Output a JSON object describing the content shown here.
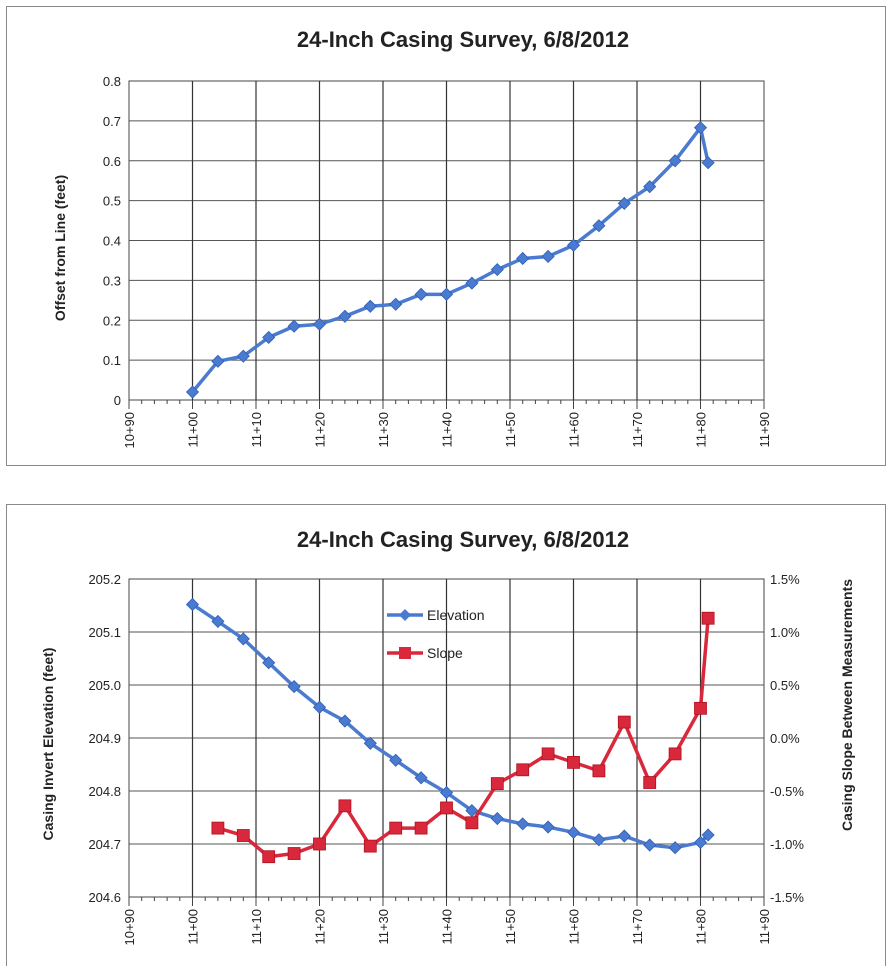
{
  "chart_data": [
    {
      "type": "line",
      "title": "24-Inch Casing Survey, 6/8/2012",
      "xlabel": "",
      "ylabel": "Offset from Line (feet)",
      "x_ticks": [
        "10+90",
        "11+00",
        "11+10",
        "11+20",
        "11+30",
        "11+40",
        "11+50",
        "11+60",
        "11+70",
        "11+80",
        "11+90"
      ],
      "xlim": [
        1090,
        1190
      ],
      "ylim": [
        0,
        0.8
      ],
      "y_ticks": [
        0,
        0.1,
        0.2,
        0.3,
        0.4,
        0.5,
        0.6,
        0.7,
        0.8
      ],
      "grid": true,
      "series": [
        {
          "name": "",
          "color": "#4a7bd0",
          "marker": "diamond",
          "x": [
            1100,
            1104,
            1108,
            1112,
            1116,
            1120,
            1124,
            1128,
            1132,
            1136,
            1140,
            1144,
            1148,
            1152,
            1156,
            1160,
            1164,
            1168,
            1172,
            1176,
            1180,
            1181.2
          ],
          "y": [
            0.02,
            0.097,
            0.11,
            0.157,
            0.185,
            0.19,
            0.21,
            0.235,
            0.24,
            0.265,
            0.265,
            0.293,
            0.327,
            0.355,
            0.36,
            0.388,
            0.437,
            0.493,
            0.535,
            0.6,
            0.683,
            0.595
          ]
        }
      ]
    },
    {
      "type": "line",
      "title": "24-Inch Casing Survey, 6/8/2012",
      "xlabel": "",
      "ylabel": "Casing Invert Elevation (feet)",
      "ylabel_right": "Casing Slope Between Measurements",
      "x_ticks": [
        "10+90",
        "11+00",
        "11+10",
        "11+20",
        "11+30",
        "11+40",
        "11+50",
        "11+60",
        "11+70",
        "11+80",
        "11+90"
      ],
      "xlim": [
        1090,
        1190
      ],
      "ylim": [
        204.6,
        205.2
      ],
      "y_ticks": [
        "204.6",
        "204.7",
        "204.8",
        "204.9",
        "205.0",
        "205.1",
        "205.2"
      ],
      "ylim_right": [
        -1.5,
        1.5
      ],
      "y_ticks_right": [
        "-1.5%",
        "-1.0%",
        "-0.5%",
        "0.0%",
        "0.5%",
        "1.0%",
        "1.5%"
      ],
      "grid": true,
      "legend_position": "upper-center",
      "series": [
        {
          "name": "Elevation",
          "axis": "left",
          "color": "#4a7bd0",
          "marker": "diamond",
          "x": [
            1100,
            1104,
            1108,
            1112,
            1116,
            1120,
            1124,
            1128,
            1132,
            1136,
            1140,
            1144,
            1148,
            1152,
            1156,
            1160,
            1164,
            1168,
            1172,
            1176,
            1180,
            1181.2
          ],
          "y": [
            205.152,
            205.12,
            205.087,
            205.042,
            204.997,
            204.958,
            204.932,
            204.89,
            204.858,
            204.825,
            204.797,
            204.763,
            204.748,
            204.738,
            204.732,
            204.722,
            204.708,
            204.715,
            204.698,
            204.693,
            204.703,
            204.717
          ]
        },
        {
          "name": "Slope",
          "axis": "right",
          "color": "#d9283b",
          "marker": "square",
          "x": [
            1104,
            1108,
            1112,
            1116,
            1120,
            1124,
            1128,
            1132,
            1136,
            1140,
            1144,
            1148,
            1152,
            1156,
            1160,
            1164,
            1168,
            1172,
            1176,
            1180,
            1181.2
          ],
          "y": [
            -0.85,
            -0.92,
            -1.12,
            -1.09,
            -1.0,
            -0.64,
            -1.02,
            -0.85,
            -0.85,
            -0.66,
            -0.8,
            -0.43,
            -0.3,
            -0.15,
            -0.23,
            -0.31,
            0.15,
            -0.42,
            -0.15,
            0.28,
            1.13
          ]
        }
      ]
    }
  ]
}
